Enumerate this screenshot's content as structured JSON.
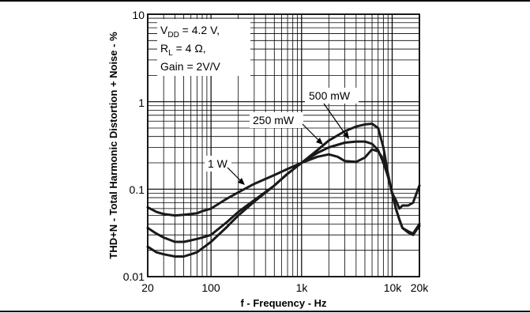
{
  "chart_data": {
    "type": "line",
    "xlabel": "f - Frequency - Hz",
    "ylabel": "THD+N - Total Harmonic Distortion + Noise - %",
    "x_scale": "log",
    "y_scale": "log",
    "xlim": [
      20,
      20000
    ],
    "ylim": [
      0.01,
      10
    ],
    "grid": true,
    "x_ticks": [
      20,
      100,
      1000,
      10000,
      20000
    ],
    "x_tick_labels": [
      "20",
      "100",
      "1k",
      "10k",
      "20k"
    ],
    "y_ticks": [
      0.01,
      0.1,
      1,
      10
    ],
    "y_tick_labels": [
      "0.01",
      "0.1",
      "1",
      "10"
    ],
    "conditions": {
      "line1_prefix": "V",
      "line1_sub": "DD",
      "line1_rest": " = 4.2 V,",
      "line2_prefix": "R",
      "line2_sub": "L",
      "line2_rest": " = 4 Ω,",
      "line3": "Gain = 2V/V"
    },
    "series": [
      {
        "name": "1 W",
        "x": [
          20,
          25,
          30,
          40,
          50,
          60,
          70,
          80,
          100,
          150,
          200,
          300,
          500,
          700,
          1000,
          1500,
          2000,
          2500,
          3000,
          4000,
          5000,
          6000,
          7000,
          8000,
          9000,
          10000,
          11000,
          12000,
          13000,
          15000,
          17000,
          20000
        ],
        "y": [
          0.062,
          0.055,
          0.052,
          0.05,
          0.051,
          0.052,
          0.053,
          0.056,
          0.06,
          0.078,
          0.092,
          0.115,
          0.145,
          0.17,
          0.2,
          0.235,
          0.25,
          0.235,
          0.21,
          0.205,
          0.23,
          0.285,
          0.27,
          0.22,
          0.14,
          0.09,
          0.075,
          0.06,
          0.065,
          0.065,
          0.07,
          0.11
        ]
      },
      {
        "name": "250 mW",
        "x": [
          20,
          25,
          30,
          40,
          50,
          60,
          70,
          80,
          100,
          150,
          200,
          300,
          500,
          700,
          1000,
          1500,
          2000,
          3000,
          4000,
          5000,
          6000,
          7000,
          8000,
          9000,
          10000,
          11000,
          12000,
          13000,
          15000,
          17000,
          20000
        ],
        "y": [
          0.036,
          0.031,
          0.028,
          0.025,
          0.025,
          0.026,
          0.027,
          0.028,
          0.03,
          0.042,
          0.055,
          0.075,
          0.11,
          0.15,
          0.2,
          0.26,
          0.3,
          0.34,
          0.35,
          0.35,
          0.33,
          0.28,
          0.2,
          0.14,
          0.09,
          0.06,
          0.045,
          0.036,
          0.032,
          0.03,
          0.038
        ]
      },
      {
        "name": "500 mW",
        "x": [
          20,
          25,
          30,
          40,
          50,
          60,
          70,
          80,
          100,
          150,
          200,
          300,
          500,
          700,
          1000,
          1500,
          2000,
          3000,
          4000,
          5000,
          6000,
          7000,
          8000,
          9000,
          10000,
          11000,
          12000,
          13000,
          15000,
          17000,
          20000
        ],
        "y": [
          0.022,
          0.019,
          0.018,
          0.017,
          0.017,
          0.018,
          0.019,
          0.021,
          0.025,
          0.037,
          0.05,
          0.072,
          0.11,
          0.15,
          0.2,
          0.28,
          0.36,
          0.46,
          0.52,
          0.55,
          0.56,
          0.5,
          0.3,
          0.15,
          0.09,
          0.06,
          0.045,
          0.036,
          0.033,
          0.031,
          0.04
        ]
      }
    ],
    "annotations": [
      "1 W",
      "250 mW",
      "500 mW"
    ]
  }
}
